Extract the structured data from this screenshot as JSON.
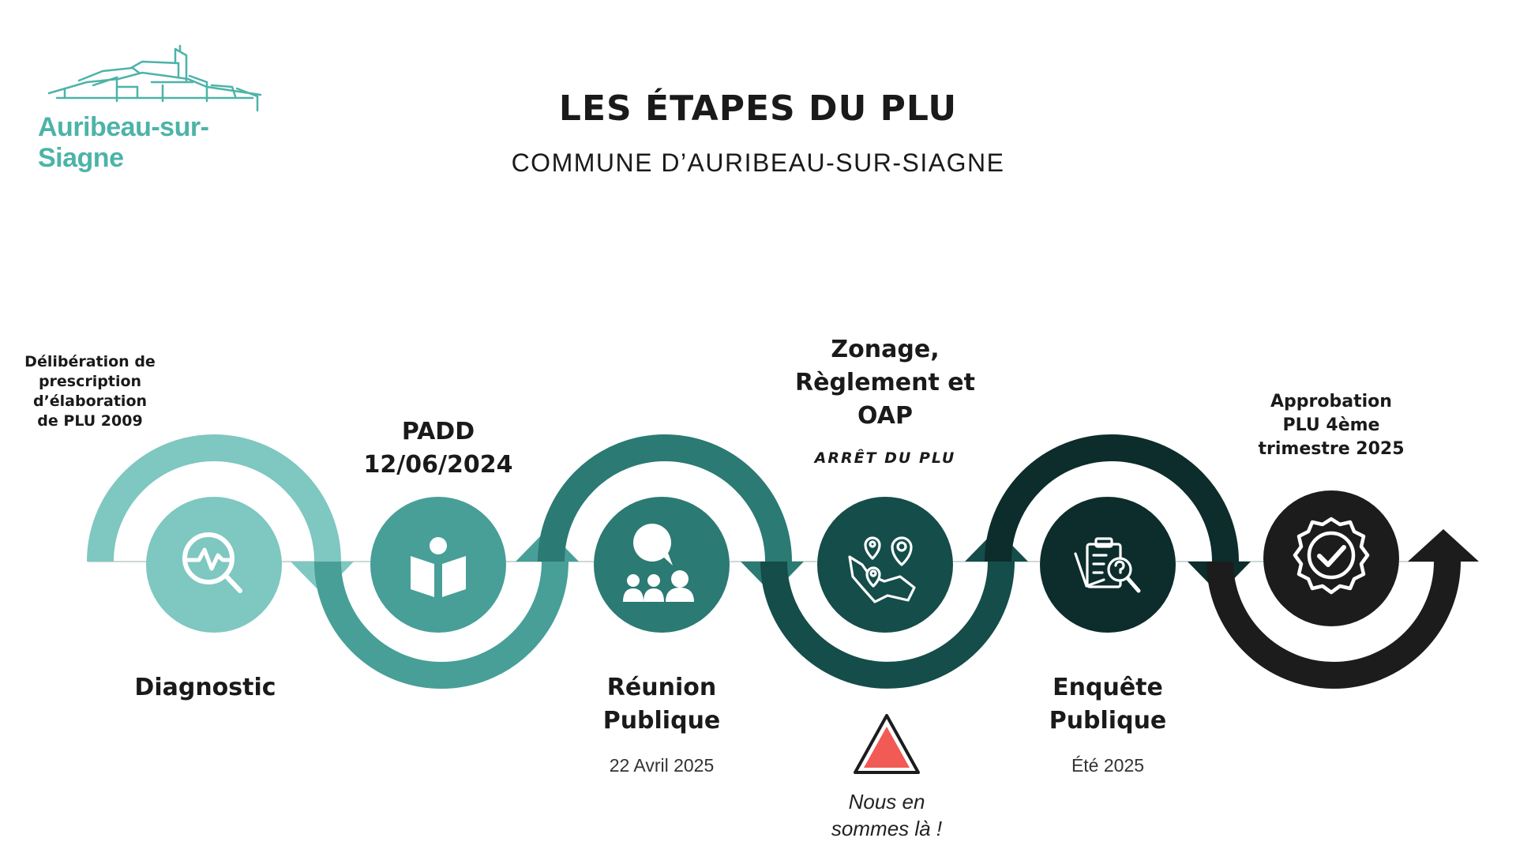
{
  "header": {
    "title": "LES ÉTAPES DU PLU",
    "subtitle": "COMMUNE D’AURIBEAU-SUR-SIAGNE"
  },
  "logo": {
    "text": "Auribeau-sur-Siagne",
    "icon": "village-skyline-logo",
    "color": "#4db3a8"
  },
  "steps": [
    {
      "label": "Diagnostic",
      "note": "Délibération de prescription d’élaboration de PLU 2009",
      "note_lines": [
        "Délibération de",
        "prescription",
        "d’élaboration",
        "de PLU 2009"
      ],
      "icon": "magnifier-pulse-icon",
      "color": "#7fc7c1"
    },
    {
      "label": "PADD",
      "label_lines": [
        "PADD",
        "12/06/2024"
      ],
      "date": "12/06/2024",
      "icon": "open-book-reader-icon",
      "color": "#479f98"
    },
    {
      "label": "Réunion Publique",
      "label_lines": [
        "Réunion",
        "Publique"
      ],
      "date": "22 Avril 2025",
      "icon": "public-meeting-icon",
      "color": "#2b7a73"
    },
    {
      "label": "Zonage, Règlement et OAP",
      "label_lines": [
        "Zonage,",
        "Règlement et",
        "OAP"
      ],
      "sublabel": "ARRÊT DU PLU",
      "icon": "map-pins-icon",
      "color": "#144d4a"
    },
    {
      "label": "Enquête Publique",
      "label_lines": [
        "Enquête",
        "Publique"
      ],
      "date": "Été 2025",
      "icon": "clipboard-search-icon",
      "color": "#0c2d2b"
    },
    {
      "label": "Approbation PLU 4ème trimestre 2025",
      "label_lines": [
        "Approbation",
        "PLU 4ème",
        "trimestre 2025"
      ],
      "icon": "certified-check-badge-icon",
      "color": "#1c1c1c"
    }
  ],
  "current_marker": {
    "text_lines": [
      "Nous en",
      "sommes là !"
    ],
    "current_step": "Zonage, Règlement et OAP",
    "icon": "red-triangle-marker-icon",
    "color": "#f15a55"
  },
  "colors": {
    "step1": "#7fc7c1",
    "step2": "#479f98",
    "step3": "#2b7a73",
    "step4": "#144d4a",
    "step5": "#0c2d2b",
    "step6": "#1c1c1c",
    "marker": "#f15a55"
  }
}
